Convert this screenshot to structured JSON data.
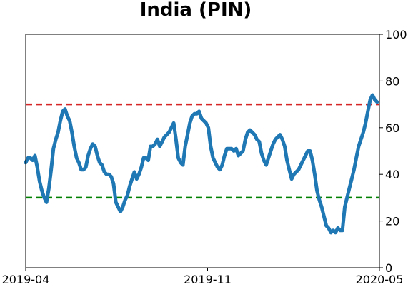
{
  "chart_data": {
    "type": "line",
    "title": "India (PIN)",
    "xlabel": "",
    "ylabel": "",
    "x_tick_labels": [
      "2019-04",
      "2019-11",
      "2020-05"
    ],
    "y_tick_labels": [
      "0",
      "20",
      "40",
      "60",
      "80",
      "100"
    ],
    "y_ticks": [
      0,
      20,
      40,
      60,
      80,
      100
    ],
    "ylim": [
      0,
      100
    ],
    "y_axis_side": "right",
    "grid": false,
    "legend": "none",
    "reference_lines": [
      {
        "y": 70,
        "color": "#d62728",
        "style": "dashed"
      },
      {
        "y": 30,
        "color": "#008000",
        "style": "dashed"
      }
    ],
    "series": [
      {
        "color": "#1f77b4",
        "points": [
          [
            0,
            45
          ],
          [
            1,
            47
          ],
          [
            2,
            47
          ],
          [
            3,
            46
          ],
          [
            4,
            48
          ],
          [
            5,
            43
          ],
          [
            6,
            37
          ],
          [
            7,
            33
          ],
          [
            8,
            30
          ],
          [
            9,
            28
          ],
          [
            10,
            34
          ],
          [
            11,
            42
          ],
          [
            12,
            51
          ],
          [
            13,
            55
          ],
          [
            14,
            58
          ],
          [
            15,
            63
          ],
          [
            16,
            67
          ],
          [
            17,
            68
          ],
          [
            18,
            65
          ],
          [
            19,
            63
          ],
          [
            20,
            58
          ],
          [
            21,
            52
          ],
          [
            22,
            47
          ],
          [
            23,
            45
          ],
          [
            24,
            42
          ],
          [
            25,
            42
          ],
          [
            26,
            43
          ],
          [
            27,
            48
          ],
          [
            28,
            51
          ],
          [
            29,
            53
          ],
          [
            30,
            52
          ],
          [
            31,
            48
          ],
          [
            32,
            45
          ],
          [
            33,
            44
          ],
          [
            34,
            41
          ],
          [
            35,
            40
          ],
          [
            36,
            40
          ],
          [
            37,
            39
          ],
          [
            38,
            36
          ],
          [
            39,
            28
          ],
          [
            40,
            26
          ],
          [
            41,
            24
          ],
          [
            42,
            26
          ],
          [
            43,
            29
          ],
          [
            44,
            31
          ],
          [
            45,
            35
          ],
          [
            46,
            38
          ],
          [
            47,
            41
          ],
          [
            48,
            38
          ],
          [
            49,
            40
          ],
          [
            50,
            43
          ],
          [
            51,
            47
          ],
          [
            52,
            47
          ],
          [
            53,
            46
          ],
          [
            54,
            52
          ],
          [
            55,
            52
          ],
          [
            56,
            53
          ],
          [
            57,
            55
          ],
          [
            58,
            52
          ],
          [
            59,
            54
          ],
          [
            60,
            56
          ],
          [
            61,
            57
          ],
          [
            62,
            58
          ],
          [
            63,
            60
          ],
          [
            64,
            62
          ],
          [
            65,
            55
          ],
          [
            66,
            47
          ],
          [
            67,
            45
          ],
          [
            68,
            44
          ],
          [
            69,
            52
          ],
          [
            70,
            57
          ],
          [
            71,
            62
          ],
          [
            72,
            65
          ],
          [
            73,
            66
          ],
          [
            74,
            66
          ],
          [
            75,
            67
          ],
          [
            76,
            64
          ],
          [
            77,
            63
          ],
          [
            78,
            62
          ],
          [
            79,
            60
          ],
          [
            80,
            52
          ],
          [
            81,
            47
          ],
          [
            82,
            45
          ],
          [
            83,
            43
          ],
          [
            84,
            42
          ],
          [
            85,
            44
          ],
          [
            86,
            48
          ],
          [
            87,
            51
          ],
          [
            88,
            51
          ],
          [
            89,
            51
          ],
          [
            90,
            50
          ],
          [
            91,
            51
          ],
          [
            92,
            48
          ],
          [
            93,
            49
          ],
          [
            94,
            50
          ],
          [
            95,
            55
          ],
          [
            96,
            58
          ],
          [
            97,
            59
          ],
          [
            98,
            58
          ],
          [
            99,
            57
          ],
          [
            100,
            55
          ],
          [
            101,
            54
          ],
          [
            102,
            49
          ],
          [
            103,
            46
          ],
          [
            104,
            44
          ],
          [
            105,
            47
          ],
          [
            106,
            50
          ],
          [
            107,
            53
          ],
          [
            108,
            55
          ],
          [
            109,
            56
          ],
          [
            110,
            57
          ],
          [
            111,
            55
          ],
          [
            112,
            52
          ],
          [
            113,
            46
          ],
          [
            114,
            42
          ],
          [
            115,
            38
          ],
          [
            116,
            40
          ],
          [
            117,
            41
          ],
          [
            118,
            42
          ],
          [
            119,
            44
          ],
          [
            120,
            46
          ],
          [
            121,
            48
          ],
          [
            122,
            50
          ],
          [
            123,
            50
          ],
          [
            124,
            46
          ],
          [
            125,
            40
          ],
          [
            126,
            33
          ],
          [
            127,
            29
          ],
          [
            128,
            26
          ],
          [
            129,
            22
          ],
          [
            130,
            18
          ],
          [
            131,
            17
          ],
          [
            132,
            15
          ],
          [
            133,
            16
          ],
          [
            134,
            15
          ],
          [
            135,
            17
          ],
          [
            136,
            16
          ],
          [
            137,
            16
          ],
          [
            138,
            26
          ],
          [
            139,
            30
          ],
          [
            140,
            34
          ],
          [
            141,
            38
          ],
          [
            142,
            42
          ],
          [
            143,
            47
          ],
          [
            144,
            52
          ],
          [
            145,
            55
          ],
          [
            146,
            58
          ],
          [
            147,
            62
          ],
          [
            148,
            67
          ],
          [
            149,
            72
          ],
          [
            150,
            74
          ],
          [
            151,
            72
          ],
          [
            152,
            71
          ]
        ]
      }
    ]
  }
}
